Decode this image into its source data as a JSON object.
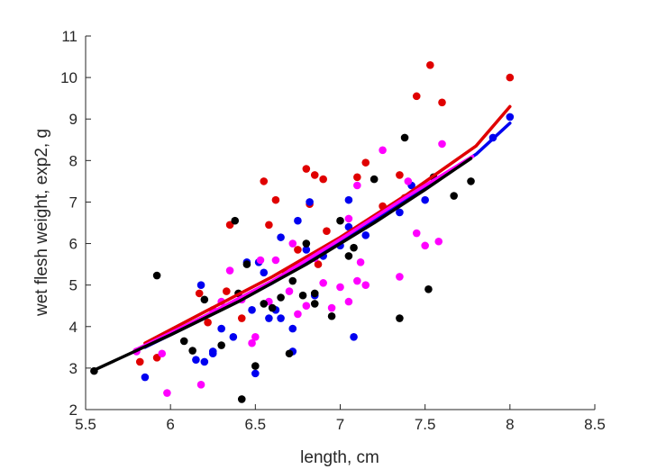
{
  "chart_data": {
    "type": "scatter",
    "title": "",
    "xlabel": "length, cm",
    "ylabel": "wet flesh weight, exp2, g",
    "xlim": [
      5.5,
      8.5
    ],
    "ylim": [
      2,
      11
    ],
    "xticks": [
      "5.5",
      "6",
      "6.5",
      "7",
      "7.5",
      "8",
      "8.5"
    ],
    "yticks": [
      "2",
      "3",
      "4",
      "5",
      "6",
      "7",
      "8",
      "9",
      "10",
      "11"
    ],
    "grid": false,
    "legend": "none",
    "series": [
      {
        "color": "#e00000",
        "points": [
          [
            5.82,
            3.15
          ],
          [
            5.92,
            3.25
          ],
          [
            6.17,
            4.8
          ],
          [
            6.22,
            4.1
          ],
          [
            6.33,
            4.85
          ],
          [
            6.35,
            6.45
          ],
          [
            6.42,
            4.2
          ],
          [
            6.55,
            7.5
          ],
          [
            6.58,
            6.45
          ],
          [
            6.62,
            7.05
          ],
          [
            6.68,
            5.3
          ],
          [
            6.75,
            5.85
          ],
          [
            6.8,
            7.8
          ],
          [
            6.82,
            6.95
          ],
          [
            6.85,
            7.65
          ],
          [
            6.87,
            5.5
          ],
          [
            6.9,
            7.55
          ],
          [
            6.92,
            6.3
          ],
          [
            7.0,
            6.05
          ],
          [
            7.05,
            6.2
          ],
          [
            7.1,
            7.6
          ],
          [
            7.15,
            7.95
          ],
          [
            7.25,
            6.9
          ],
          [
            7.35,
            7.65
          ],
          [
            7.38,
            7.1
          ],
          [
            7.45,
            9.55
          ],
          [
            7.53,
            10.3
          ],
          [
            7.6,
            9.4
          ],
          [
            8.0,
            10.0
          ]
        ],
        "fit": [
          [
            5.85,
            3.6
          ],
          [
            6.2,
            4.35
          ],
          [
            6.6,
            5.2
          ],
          [
            7.0,
            6.15
          ],
          [
            7.4,
            7.2
          ],
          [
            7.8,
            8.35
          ],
          [
            8.0,
            9.3
          ]
        ]
      },
      {
        "color": "#0000f0",
        "points": [
          [
            5.85,
            2.78
          ],
          [
            6.15,
            3.2
          ],
          [
            6.18,
            5.0
          ],
          [
            6.2,
            3.15
          ],
          [
            6.25,
            3.35
          ],
          [
            6.25,
            3.4
          ],
          [
            6.3,
            3.95
          ],
          [
            6.37,
            3.75
          ],
          [
            6.45,
            5.55
          ],
          [
            6.48,
            4.4
          ],
          [
            6.5,
            2.87
          ],
          [
            6.52,
            5.55
          ],
          [
            6.55,
            5.3
          ],
          [
            6.58,
            4.2
          ],
          [
            6.62,
            4.4
          ],
          [
            6.65,
            4.2
          ],
          [
            6.65,
            6.15
          ],
          [
            6.72,
            3.4
          ],
          [
            6.72,
            3.95
          ],
          [
            6.75,
            6.55
          ],
          [
            6.8,
            5.85
          ],
          [
            6.82,
            7.0
          ],
          [
            6.85,
            4.75
          ],
          [
            6.9,
            5.7
          ],
          [
            7.0,
            5.95
          ],
          [
            7.05,
            6.4
          ],
          [
            7.05,
            7.05
          ],
          [
            7.08,
            3.75
          ],
          [
            7.15,
            6.2
          ],
          [
            7.35,
            6.75
          ],
          [
            7.42,
            7.4
          ],
          [
            7.5,
            7.05
          ],
          [
            7.9,
            8.55
          ],
          [
            8.0,
            9.05
          ]
        ],
        "fit": [
          [
            5.85,
            3.5
          ],
          [
            6.2,
            4.2
          ],
          [
            6.6,
            5.05
          ],
          [
            7.0,
            6.05
          ],
          [
            7.4,
            7.1
          ],
          [
            7.8,
            8.15
          ],
          [
            8.0,
            8.9
          ]
        ]
      },
      {
        "color": "#ff00ff",
        "points": [
          [
            5.8,
            3.4
          ],
          [
            5.95,
            3.35
          ],
          [
            5.98,
            2.4
          ],
          [
            6.18,
            2.6
          ],
          [
            6.25,
            4.4
          ],
          [
            6.3,
            4.6
          ],
          [
            6.35,
            5.35
          ],
          [
            6.42,
            4.65
          ],
          [
            6.48,
            3.6
          ],
          [
            6.5,
            3.75
          ],
          [
            6.53,
            5.6
          ],
          [
            6.58,
            4.6
          ],
          [
            6.62,
            5.6
          ],
          [
            6.7,
            4.85
          ],
          [
            6.72,
            6.0
          ],
          [
            6.75,
            4.3
          ],
          [
            6.8,
            4.5
          ],
          [
            6.85,
            5.65
          ],
          [
            6.9,
            5.05
          ],
          [
            6.95,
            4.45
          ],
          [
            7.0,
            4.95
          ],
          [
            7.05,
            4.6
          ],
          [
            7.05,
            6.6
          ],
          [
            7.1,
            5.1
          ],
          [
            7.1,
            7.4
          ],
          [
            7.12,
            5.55
          ],
          [
            7.15,
            5.0
          ],
          [
            7.25,
            8.25
          ],
          [
            7.35,
            5.2
          ],
          [
            7.4,
            7.5
          ],
          [
            7.45,
            6.25
          ],
          [
            7.5,
            5.95
          ],
          [
            7.58,
            6.05
          ],
          [
            7.6,
            8.4
          ]
        ],
        "fit": [
          [
            5.8,
            3.45
          ],
          [
            6.2,
            4.25
          ],
          [
            6.6,
            5.1
          ],
          [
            7.0,
            6.1
          ],
          [
            7.4,
            7.15
          ],
          [
            7.78,
            8.1
          ]
        ]
      },
      {
        "color": "#000000",
        "points": [
          [
            5.55,
            2.93
          ],
          [
            5.92,
            5.23
          ],
          [
            6.08,
            3.65
          ],
          [
            6.13,
            3.42
          ],
          [
            6.2,
            4.65
          ],
          [
            6.3,
            3.55
          ],
          [
            6.38,
            6.55
          ],
          [
            6.4,
            4.8
          ],
          [
            6.42,
            2.25
          ],
          [
            6.45,
            5.5
          ],
          [
            6.5,
            3.05
          ],
          [
            6.55,
            4.55
          ],
          [
            6.6,
            4.45
          ],
          [
            6.65,
            4.7
          ],
          [
            6.7,
            3.35
          ],
          [
            6.72,
            5.1
          ],
          [
            6.78,
            4.75
          ],
          [
            6.8,
            6.0
          ],
          [
            6.85,
            4.55
          ],
          [
            6.85,
            4.8
          ],
          [
            6.95,
            4.25
          ],
          [
            7.0,
            6.55
          ],
          [
            7.05,
            5.7
          ],
          [
            7.08,
            5.9
          ],
          [
            7.2,
            7.55
          ],
          [
            7.35,
            4.2
          ],
          [
            7.38,
            8.55
          ],
          [
            7.52,
            4.9
          ],
          [
            7.55,
            7.6
          ],
          [
            7.67,
            7.15
          ],
          [
            7.77,
            7.5
          ]
        ],
        "fit": [
          [
            5.55,
            2.95
          ],
          [
            6.0,
            3.8
          ],
          [
            6.4,
            4.6
          ],
          [
            6.8,
            5.5
          ],
          [
            7.2,
            6.5
          ],
          [
            7.5,
            7.3
          ],
          [
            7.77,
            8.05
          ]
        ]
      }
    ]
  }
}
